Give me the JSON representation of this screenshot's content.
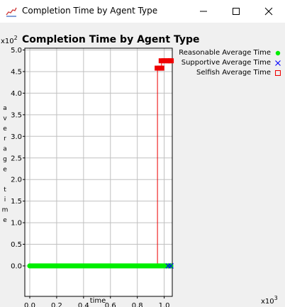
{
  "window": {
    "title": "Completion Time by Agent Type",
    "icons": {
      "app": "chart-icon",
      "minimize": "minimize-icon",
      "maximize": "maximize-icon",
      "close": "close-icon"
    }
  },
  "chart_data": {
    "type": "line",
    "title": "Completion Time by Agent Type",
    "xlabel": "time",
    "ylabel": "average time",
    "x_multiplier": "x10^3",
    "y_multiplier": "x10^2",
    "xlim": [
      0,
      1.1
    ],
    "ylim": [
      0,
      5.0
    ],
    "x_ticks": [
      "0.0",
      "0.2",
      "0.4",
      "0.6",
      "0.8",
      "1.0"
    ],
    "y_ticks": [
      "0.0",
      "0.5",
      "1.0",
      "1.5",
      "2.0",
      "2.5",
      "3.0",
      "3.5",
      "4.0",
      "4.5",
      "5.0"
    ],
    "grid": true,
    "legend_position": "right",
    "series": [
      {
        "name": "Reasonable Average Time",
        "marker": "dot",
        "color": "#00ee00",
        "x": [
          0.0,
          0.1,
          0.2,
          0.3,
          0.4,
          0.5,
          0.6,
          0.7,
          0.8,
          0.9,
          1.0,
          1.05
        ],
        "y": [
          0,
          0,
          0,
          0,
          0,
          0,
          0,
          0,
          0,
          0,
          0,
          0
        ]
      },
      {
        "name": "Supportive Average Time",
        "marker": "x",
        "color": "#0000ff",
        "x": [
          1.03,
          1.05
        ],
        "y": [
          0,
          0
        ]
      },
      {
        "name": "Selfish Average Time",
        "marker": "square",
        "color": "#ee0000",
        "x": [
          0.0,
          0.95,
          0.95,
          0.97,
          0.98,
          0.98,
          1.0,
          1.02,
          1.04,
          1.05
        ],
        "y": [
          0,
          0,
          4.58,
          4.58,
          4.58,
          4.75,
          4.75,
          4.75,
          4.75,
          4.75
        ]
      }
    ]
  }
}
